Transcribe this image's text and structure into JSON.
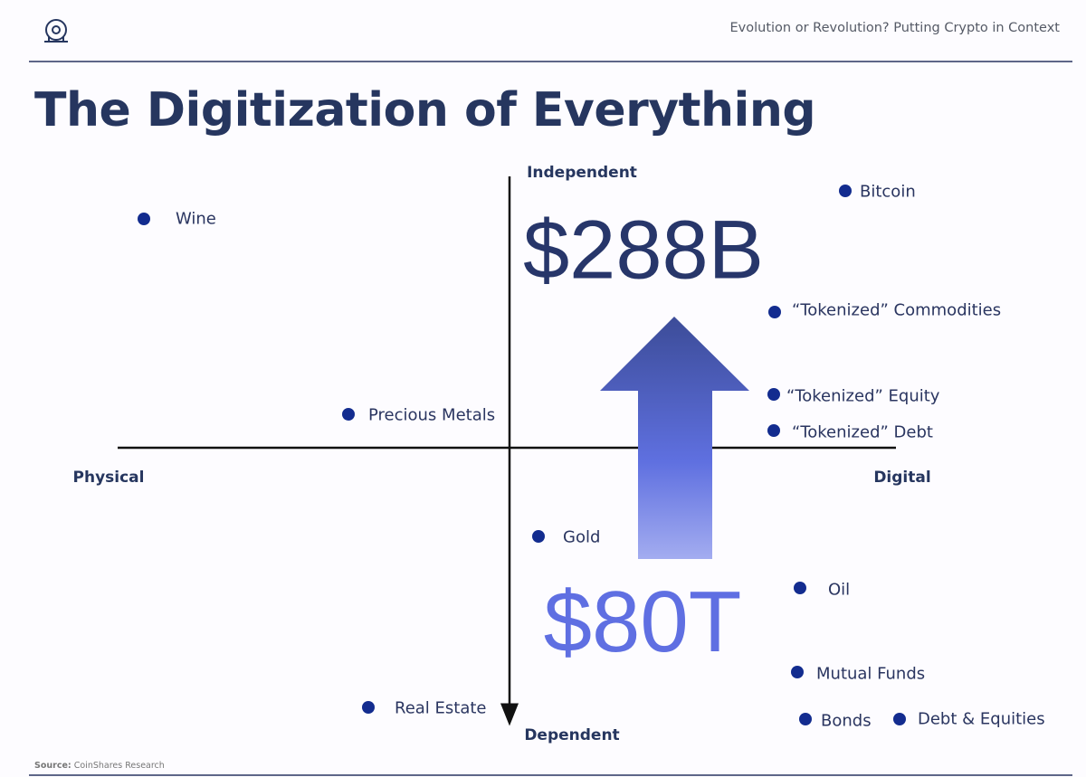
{
  "header": {
    "subtitle": "Evolution or Revolution? Putting Crypto in Context"
  },
  "title": "The Digitization of Everything",
  "axes": {
    "top": "Independent",
    "bottom": "Dependent",
    "left": "Physical",
    "right": "Digital"
  },
  "figures": {
    "upper": "$288B",
    "lower": "$80T"
  },
  "items": [
    "Wine",
    "Bitcoin",
    "“Tokenized” Commodities",
    "“Tokenized” Equity",
    "“Tokenized” Debt",
    "Precious Metals",
    "Gold",
    "Oil",
    "Mutual Funds",
    "Real Estate",
    "Bonds",
    "Debt & Equities"
  ],
  "source": {
    "label": "Source:",
    "text": "CoinShares Research"
  }
}
